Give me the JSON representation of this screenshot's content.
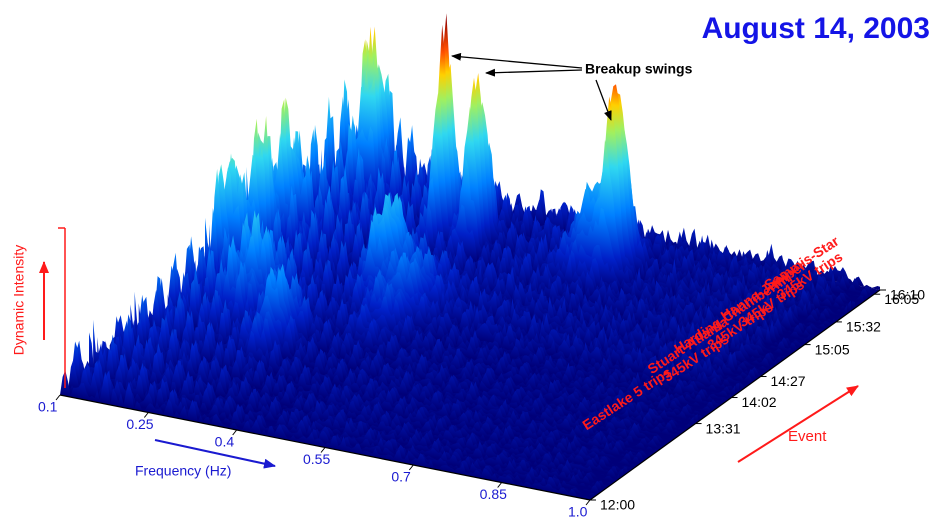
{
  "chart_data": {
    "type": "surface",
    "title": "August 14, 2003",
    "x_label": "Frequency (Hz)",
    "xlim": [
      0.1,
      1
    ],
    "xticks": [
      0.1,
      0.25,
      0.4,
      0.55,
      0.7,
      0.85,
      {
        "value": 1,
        "label": "1.0"
      }
    ],
    "y_label": "Event",
    "ylim": [
      "12:00",
      "16:10"
    ],
    "yticks": [
      "12:00",
      "13:31",
      "14:02",
      "14:27",
      "15:05",
      "15:32",
      "16:05",
      "16:10"
    ],
    "z_label": "Dynamic Intensity",
    "annotation": "Breakup swings",
    "events": [
      {
        "time": "13:31",
        "lines": [
          "Eastlake 5 trips"
        ]
      },
      {
        "time": "14:27",
        "lines": [
          "Stuart-Atlanta",
          "345kV trips"
        ]
      },
      {
        "time": "15:05",
        "lines": [
          "Harding-Chamberlin",
          "345kV trips"
        ]
      },
      {
        "time": "15:32",
        "lines": [
          "Hanna-Juniper",
          "345kV trips"
        ]
      },
      {
        "time": "16:05",
        "lines": [
          "Sammis-Star",
          "345kV trips"
        ]
      }
    ]
  }
}
